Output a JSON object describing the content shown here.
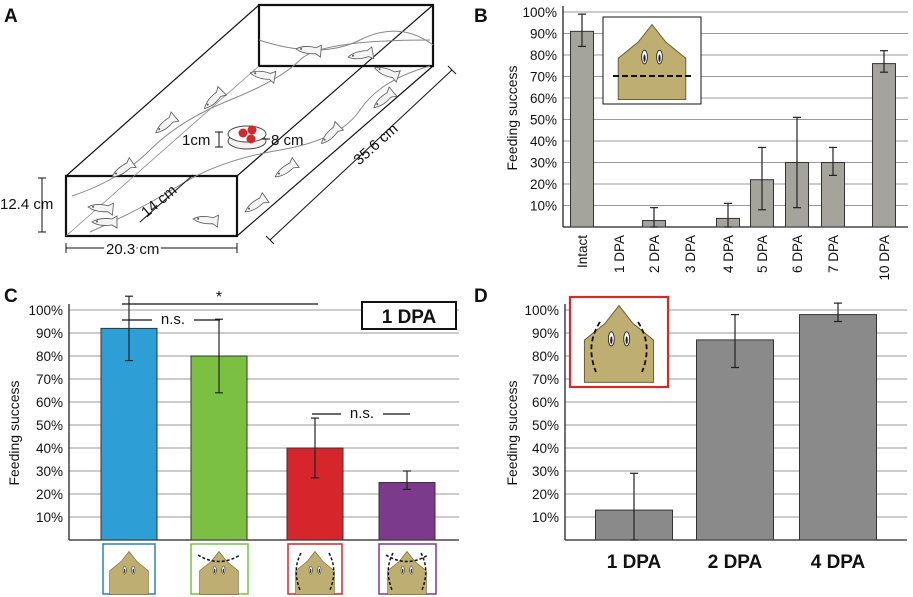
{
  "panels": {
    "a": {
      "label": "A",
      "dims": {
        "height": "12.4 cm",
        "width": "20.3 cm",
        "length": "35.6 cm",
        "inner": "14 cm",
        "dish_height": "1cm",
        "dish_diameter": "8 cm"
      }
    },
    "b": {
      "label": "B"
    },
    "c": {
      "label": "C",
      "box_label": "1 DPA",
      "sig_star": "*",
      "ns_label": "n.s."
    },
    "d": {
      "label": "D"
    }
  },
  "colors": {
    "gray_bar": "#a4a49c",
    "gray_bar_d": "#8a8a8a",
    "blue": "#2e9fd6",
    "green": "#7cc043",
    "red": "#d6262c",
    "purple": "#7b3a8c",
    "head": "#bfae72",
    "red_frame": "#d42a2a"
  },
  "chart_data": [
    {
      "panel": "B",
      "type": "bar",
      "categories": [
        "Intact",
        "1 DPA",
        "2 DPA",
        "3 DPA",
        "4 DPA",
        "5 DPA",
        "6 DPA",
        "7 DPA",
        "10 DPA"
      ],
      "values": [
        91,
        0,
        3,
        0,
        4,
        22,
        30,
        30,
        76
      ],
      "err_low": [
        84,
        null,
        0,
        null,
        0,
        8,
        9,
        24,
        72
      ],
      "err_high": [
        99,
        null,
        9,
        null,
        11,
        37,
        51,
        37,
        82
      ],
      "yticks": [
        "10%",
        "20%",
        "30%",
        "40%",
        "50%",
        "60%",
        "70%",
        "80%",
        "90%",
        "100%"
      ],
      "ylabel": "Feeding success",
      "ylim": [
        0,
        100
      ]
    },
    {
      "panel": "C",
      "type": "bar",
      "categories": [
        "uninjured",
        "nasal cut",
        "lateral cut",
        "both cuts"
      ],
      "values": [
        92,
        80,
        40,
        25
      ],
      "err_low": [
        78,
        64,
        27,
        22
      ],
      "err_high": [
        106,
        96,
        53,
        30
      ],
      "yticks": [
        "10%",
        "20%",
        "30%",
        "40%",
        "50%",
        "60%",
        "70%",
        "80%",
        "90%",
        "100%"
      ],
      "ylabel": "Feeding success",
      "ylim": [
        0,
        100
      ],
      "annotations": [
        "*",
        "n.s.",
        "n.s."
      ]
    },
    {
      "panel": "D",
      "type": "bar",
      "categories": [
        "1 DPA",
        "2 DPA",
        "4 DPA"
      ],
      "values": [
        13,
        87,
        98
      ],
      "err_low": [
        0,
        75,
        95
      ],
      "err_high": [
        29,
        98,
        103
      ],
      "yticks": [
        "10%",
        "20%",
        "30%",
        "40%",
        "50%",
        "60%",
        "70%",
        "80%",
        "90%",
        "100%"
      ],
      "ylabel": "Feeding success",
      "ylim": [
        0,
        100
      ]
    }
  ]
}
